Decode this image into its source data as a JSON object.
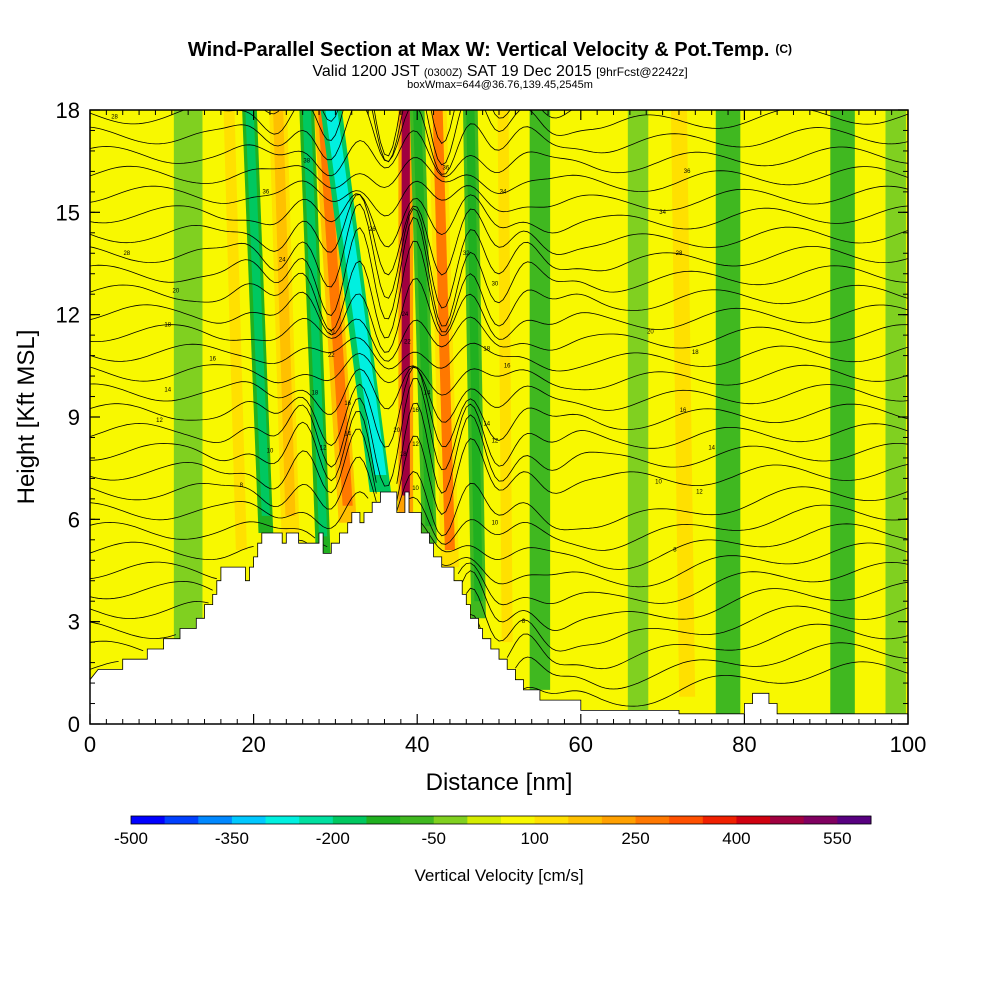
{
  "header": {
    "title_main": "Wind-Parallel Section at Max W: Vertical Velocity & Pot.Temp.",
    "title_mark": "(C)",
    "line2_a": "Valid 1200 JST",
    "line2_b": "(0300Z)",
    "line2_c": "SAT 19 Dec 2015",
    "line2_d": "[9hrFcst@2242z]",
    "line3": "boxWmax=644@36.76,139.45,2545m"
  },
  "chart_data": {
    "type": "heatmap",
    "xlabel": "Distance [nm]",
    "ylabel": "Height [Kft MSL]",
    "xlim": [
      0,
      100
    ],
    "ylim": [
      0,
      18
    ],
    "x_ticks": [
      0,
      20,
      40,
      60,
      80,
      100
    ],
    "y_ticks": [
      0,
      3,
      6,
      9,
      12,
      15,
      18
    ],
    "colorbar": {
      "label": "Vertical Velocity [cm/s]",
      "range": [
        -500,
        600
      ],
      "step": 50,
      "tick_labels": [
        "-500",
        "-350",
        "-200",
        "-50",
        "100",
        "250",
        "400",
        "550"
      ],
      "tick_values": [
        -500,
        -350,
        -200,
        -50,
        100,
        250,
        400,
        550
      ],
      "colors": [
        "#0000ff",
        "#0040ff",
        "#0088ff",
        "#00c8ff",
        "#00f0e0",
        "#00e0a0",
        "#00c860",
        "#20b020",
        "#40b820",
        "#80d020",
        "#d4ec00",
        "#f8f800",
        "#ffe000",
        "#ffc000",
        "#ffa000",
        "#ff7800",
        "#ff5000",
        "#f02000",
        "#d00010",
        "#a00040",
        "#800060",
        "#580080"
      ]
    },
    "terrain_profile": [
      [
        0,
        1.3
      ],
      [
        1,
        1.6
      ],
      [
        4,
        1.6
      ],
      [
        4,
        1.9
      ],
      [
        7,
        1.9
      ],
      [
        7,
        2.2
      ],
      [
        9,
        2.2
      ],
      [
        9,
        2.5
      ],
      [
        11,
        2.5
      ],
      [
        11,
        2.8
      ],
      [
        13,
        2.8
      ],
      [
        13,
        3.1
      ],
      [
        14,
        3.1
      ],
      [
        14,
        3.5
      ],
      [
        15,
        3.5
      ],
      [
        15,
        3.8
      ],
      [
        15.5,
        3.8
      ],
      [
        15.5,
        4.2
      ],
      [
        16,
        4.2
      ],
      [
        16,
        4.6
      ],
      [
        19,
        4.6
      ],
      [
        19,
        4.2
      ],
      [
        19.5,
        4.2
      ],
      [
        19.5,
        4.6
      ],
      [
        20,
        4.6
      ],
      [
        20,
        4.9
      ],
      [
        20.5,
        4.9
      ],
      [
        20.5,
        5.3
      ],
      [
        21,
        5.3
      ],
      [
        21,
        5.6
      ],
      [
        23.5,
        5.6
      ],
      [
        23.5,
        5.3
      ],
      [
        24,
        5.3
      ],
      [
        24,
        5.6
      ],
      [
        25.5,
        5.6
      ],
      [
        25.5,
        5.3
      ],
      [
        28,
        5.3
      ],
      [
        28,
        5.6
      ],
      [
        28.5,
        5.6
      ],
      [
        28.5,
        5.0
      ],
      [
        29.5,
        5.0
      ],
      [
        29.5,
        5.3
      ],
      [
        30.5,
        5.3
      ],
      [
        30.5,
        5.6
      ],
      [
        31.5,
        5.6
      ],
      [
        31.5,
        5.9
      ],
      [
        32,
        5.9
      ],
      [
        32,
        6.2
      ],
      [
        33,
        6.2
      ],
      [
        33,
        5.9
      ],
      [
        33.5,
        5.9
      ],
      [
        33.5,
        6.2
      ],
      [
        34.5,
        6.2
      ],
      [
        34.5,
        6.5
      ],
      [
        35.5,
        6.5
      ],
      [
        35.5,
        6.8
      ],
      [
        37.5,
        6.8
      ],
      [
        37.5,
        6.2
      ],
      [
        38.5,
        6.2
      ],
      [
        38.5,
        6.8
      ],
      [
        39,
        6.8
      ],
      [
        39,
        6.2
      ],
      [
        40.5,
        6.2
      ],
      [
        40.5,
        5.6
      ],
      [
        41.5,
        5.6
      ],
      [
        41.5,
        5.3
      ],
      [
        42,
        5.3
      ],
      [
        42,
        4.9
      ],
      [
        43,
        4.9
      ],
      [
        43,
        4.6
      ],
      [
        44.5,
        4.6
      ],
      [
        44.5,
        4.2
      ],
      [
        45.5,
        4.2
      ],
      [
        45.5,
        3.8
      ],
      [
        46,
        3.8
      ],
      [
        46,
        3.5
      ],
      [
        46.5,
        3.5
      ],
      [
        46.5,
        3.1
      ],
      [
        47.5,
        3.1
      ],
      [
        47.5,
        2.8
      ],
      [
        48,
        2.8
      ],
      [
        48,
        2.5
      ],
      [
        49,
        2.5
      ],
      [
        49,
        2.2
      ],
      [
        50,
        2.2
      ],
      [
        50,
        1.9
      ],
      [
        51,
        1.9
      ],
      [
        51,
        1.6
      ],
      [
        52,
        1.6
      ],
      [
        52,
        1.3
      ],
      [
        53,
        1.3
      ],
      [
        53,
        1.0
      ],
      [
        55,
        1.0
      ],
      [
        55,
        0.7
      ],
      [
        60,
        0.7
      ],
      [
        60,
        0.4
      ],
      [
        72,
        0.4
      ],
      [
        72,
        0.3
      ],
      [
        80,
        0.3
      ],
      [
        80,
        0.6
      ],
      [
        81,
        0.6
      ],
      [
        81,
        0.9
      ],
      [
        83,
        0.9
      ],
      [
        83,
        0.6
      ],
      [
        84,
        0.6
      ],
      [
        84,
        0.3
      ],
      [
        100,
        0.3
      ]
    ],
    "velocity_bands": [
      {
        "x": 12,
        "w": 3.5,
        "v": -40,
        "h0": 0,
        "h1": 18,
        "tilt": 0
      },
      {
        "x": 18.5,
        "w": 2.4,
        "v": 100,
        "h0": 4.6,
        "h1": 18,
        "tilt": -1.5
      },
      {
        "x": 21.5,
        "w": 1.8,
        "v": -200,
        "h0": 5.6,
        "h1": 18,
        "tilt": -2
      },
      {
        "x": 24.5,
        "w": 2.2,
        "v": 160,
        "h0": 5.6,
        "h1": 18,
        "tilt": -1.5
      },
      {
        "x": 28.5,
        "w": 1.8,
        "v": -200,
        "h0": 5.0,
        "h1": 18,
        "tilt": -2
      },
      {
        "x": 31.5,
        "w": 2.2,
        "v": 280,
        "h0": 5.9,
        "h1": 18,
        "tilt": -3
      },
      {
        "x": 35.5,
        "w": 2.6,
        "v": -300,
        "h0": 6.8,
        "h1": 18,
        "tilt": -6
      },
      {
        "x": 38.6,
        "w": 1.8,
        "v": 450,
        "h0": 6.2,
        "h1": 18,
        "tilt": 0
      },
      {
        "x": 41.5,
        "w": 1.8,
        "v": -120,
        "h0": 5.3,
        "h1": 18,
        "tilt": -1.5
      },
      {
        "x": 44,
        "w": 2.2,
        "v": 250,
        "h0": 4.6,
        "h1": 18,
        "tilt": -1.5
      },
      {
        "x": 47.5,
        "w": 1.8,
        "v": -150,
        "h0": 3.1,
        "h1": 18,
        "tilt": -1
      },
      {
        "x": 51,
        "w": 2.4,
        "v": 130,
        "h0": 1.9,
        "h1": 18,
        "tilt": -0.5
      },
      {
        "x": 55,
        "w": 2.5,
        "v": -60,
        "h0": 1.0,
        "h1": 18,
        "tilt": 0
      },
      {
        "x": 62,
        "w": 3.0,
        "v": 60,
        "h0": 0.4,
        "h1": 18,
        "tilt": 0
      },
      {
        "x": 67,
        "w": 2.5,
        "v": -50,
        "h0": 0.4,
        "h1": 18,
        "tilt": 0
      },
      {
        "x": 73,
        "w": 3.5,
        "v": 120,
        "h0": 0.3,
        "h1": 18,
        "tilt": -1
      },
      {
        "x": 78,
        "w": 3.0,
        "v": -80,
        "h0": 0.3,
        "h1": 18,
        "tilt": 0
      },
      {
        "x": 86,
        "w": 4.0,
        "v": 70,
        "h0": 0.3,
        "h1": 18,
        "tilt": 0
      },
      {
        "x": 92,
        "w": 3.0,
        "v": -60,
        "h0": 0.3,
        "h1": 18,
        "tilt": 0
      },
      {
        "x": 98.5,
        "w": 2.5,
        "v": -50,
        "h0": 0.3,
        "h1": 18,
        "tilt": 0
      }
    ],
    "contour_labels": [
      {
        "t": "28",
        "x": 3,
        "y": 17.8
      },
      {
        "t": "36",
        "x": 21.5,
        "y": 15.6
      },
      {
        "t": "38",
        "x": 26.5,
        "y": 16.5
      },
      {
        "t": "24",
        "x": 23.5,
        "y": 13.6
      },
      {
        "t": "28",
        "x": 4.5,
        "y": 13.8
      },
      {
        "t": "20",
        "x": 10.5,
        "y": 12.7
      },
      {
        "t": "18",
        "x": 9.5,
        "y": 11.7
      },
      {
        "t": "16",
        "x": 15,
        "y": 10.7
      },
      {
        "t": "14",
        "x": 9.5,
        "y": 9.8
      },
      {
        "t": "12",
        "x": 8.5,
        "y": 8.9
      },
      {
        "t": "8",
        "x": 18.5,
        "y": 7.0
      },
      {
        "t": "10",
        "x": 22,
        "y": 8.0
      },
      {
        "t": "12",
        "x": 28.5,
        "y": 8.1
      },
      {
        "t": "14",
        "x": 31.5,
        "y": 8.5
      },
      {
        "t": "16",
        "x": 31.5,
        "y": 9.4
      },
      {
        "t": "18",
        "x": 27.5,
        "y": 9.7
      },
      {
        "t": "20",
        "x": 29.5,
        "y": 11.5
      },
      {
        "t": "22",
        "x": 29.5,
        "y": 10.8
      },
      {
        "t": "26",
        "x": 34.5,
        "y": 14.5
      },
      {
        "t": "24",
        "x": 38.5,
        "y": 12.0
      },
      {
        "t": "22",
        "x": 38.8,
        "y": 11.2
      },
      {
        "t": "20",
        "x": 37.5,
        "y": 8.6
      },
      {
        "t": "18",
        "x": 38.3,
        "y": 7.9
      },
      {
        "t": "16",
        "x": 39.8,
        "y": 9.2
      },
      {
        "t": "14",
        "x": 41.2,
        "y": 9.7
      },
      {
        "t": "12",
        "x": 39.8,
        "y": 8.2
      },
      {
        "t": "10",
        "x": 39.8,
        "y": 6.9
      },
      {
        "t": "36",
        "x": 43.5,
        "y": 16.3
      },
      {
        "t": "34",
        "x": 50.5,
        "y": 15.6
      },
      {
        "t": "32",
        "x": 46,
        "y": 13.8
      },
      {
        "t": "30",
        "x": 49.5,
        "y": 12.9
      },
      {
        "t": "18",
        "x": 48.5,
        "y": 11.0
      },
      {
        "t": "16",
        "x": 51,
        "y": 10.5
      },
      {
        "t": "14",
        "x": 48.5,
        "y": 8.8
      },
      {
        "t": "12",
        "x": 49.5,
        "y": 8.3
      },
      {
        "t": "10",
        "x": 49.5,
        "y": 5.9
      },
      {
        "t": "8",
        "x": 53,
        "y": 3.0
      },
      {
        "t": "36",
        "x": 73,
        "y": 16.2
      },
      {
        "t": "34",
        "x": 70,
        "y": 15.0
      },
      {
        "t": "28",
        "x": 72,
        "y": 13.8
      },
      {
        "t": "20",
        "x": 68.5,
        "y": 11.5
      },
      {
        "t": "18",
        "x": 74,
        "y": 10.9
      },
      {
        "t": "16",
        "x": 72.5,
        "y": 9.2
      },
      {
        "t": "14",
        "x": 76,
        "y": 8.1
      },
      {
        "t": "10",
        "x": 69.5,
        "y": 7.1
      },
      {
        "t": "12",
        "x": 74.5,
        "y": 6.8
      },
      {
        "t": "8",
        "x": 71.5,
        "y": 5.1
      }
    ]
  }
}
